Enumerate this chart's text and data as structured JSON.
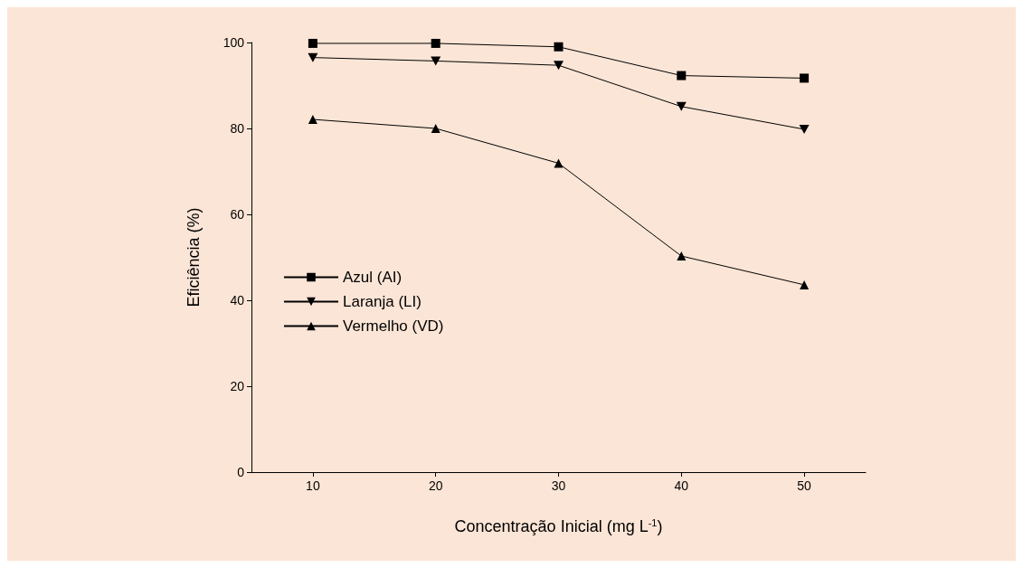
{
  "chart_data": {
    "type": "line",
    "xlabel": "Concentração Inicial (mg L$^{-1}$)",
    "ylabel": "Eficiência (%)",
    "x": [
      10,
      20,
      30,
      40,
      50
    ],
    "series": [
      {
        "name": "Azul (AI)",
        "color": "#000000",
        "marker": "square",
        "values": [
          99.8,
          99.8,
          99,
          92.3,
          91.7
        ]
      },
      {
        "name": "Laranja (LI)",
        "color": "#000000",
        "marker": "triangle-down",
        "values": [
          96.5,
          95.7,
          94.7,
          85.1,
          79.8
        ]
      },
      {
        "name": "Vermelho (VD)",
        "color": "#000000",
        "marker": "triangle",
        "values": [
          82.1,
          80,
          71.9,
          50.3,
          43.6
        ]
      }
    ],
    "xlim": [
      5,
      55
    ],
    "xticks": [
      10,
      20,
      30,
      40,
      50
    ],
    "ylim": [
      0,
      100
    ],
    "yticks": [
      0,
      20,
      40,
      60,
      80,
      100
    ],
    "grid": false,
    "legend": "center left",
    "line_style": "solid"
  }
}
